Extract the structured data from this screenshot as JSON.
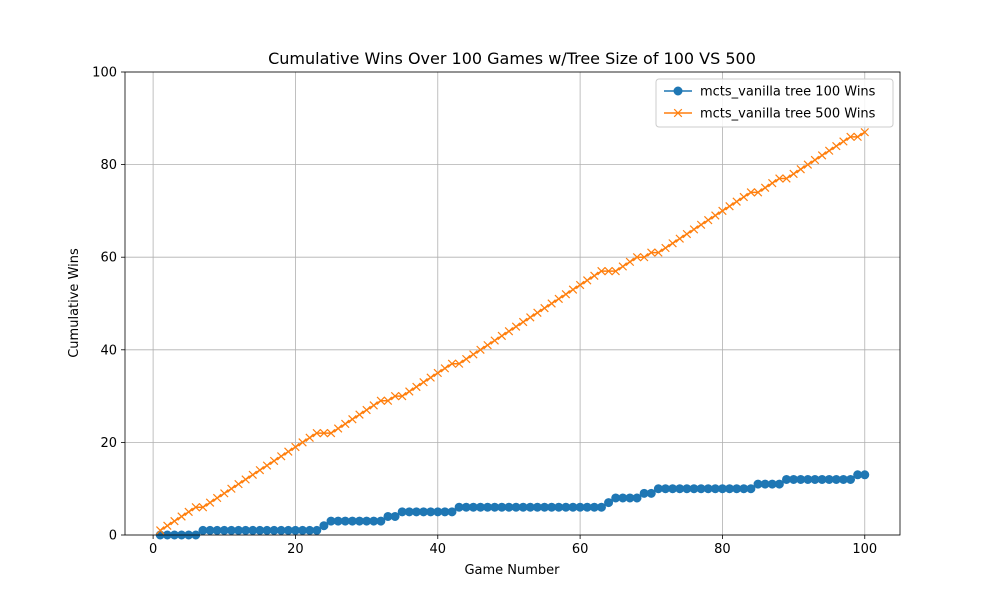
{
  "chart_data": {
    "type": "line",
    "title": "Cumulative Wins Over 100 Games w/Tree Size of 100 VS 500",
    "xlabel": "Game Number",
    "ylabel": "Cumulative Wins",
    "xlim": [
      -3.95,
      104.95
    ],
    "ylim": [
      0,
      100
    ],
    "xticks": [
      0,
      20,
      40,
      60,
      80,
      100
    ],
    "yticks": [
      0,
      20,
      40,
      60,
      80,
      100
    ],
    "grid": true,
    "legend_position": "top-right",
    "series": [
      {
        "name": "mcts_vanilla tree 100 Wins",
        "color": "#1f77b4",
        "marker": "circle",
        "values": [
          0,
          0,
          0,
          0,
          0,
          0,
          1,
          1,
          1,
          1,
          1,
          1,
          1,
          1,
          1,
          1,
          1,
          1,
          1,
          1,
          1,
          1,
          1,
          2,
          3,
          3,
          3,
          3,
          3,
          3,
          3,
          3,
          4,
          4,
          5,
          5,
          5,
          5,
          5,
          5,
          5,
          5,
          6,
          6,
          6,
          6,
          6,
          6,
          6,
          6,
          6,
          6,
          6,
          6,
          6,
          6,
          6,
          6,
          6,
          6,
          6,
          6,
          6,
          7,
          8,
          8,
          8,
          8,
          9,
          9,
          10,
          10,
          10,
          10,
          10,
          10,
          10,
          10,
          10,
          10,
          10,
          10,
          10,
          10,
          11,
          11,
          11,
          11,
          12,
          12,
          12,
          12,
          12,
          12,
          12,
          12,
          12,
          12,
          13,
          13
        ]
      },
      {
        "name": "mcts_vanilla tree 500 Wins",
        "color": "#ff7f0e",
        "marker": "x",
        "values": [
          1,
          2,
          3,
          4,
          5,
          6,
          6,
          7,
          8,
          9,
          10,
          11,
          12,
          13,
          14,
          15,
          16,
          17,
          18,
          19,
          20,
          21,
          22,
          22,
          22,
          23,
          24,
          25,
          26,
          27,
          28,
          29,
          29,
          30,
          30,
          31,
          32,
          33,
          34,
          35,
          36,
          37,
          37,
          38,
          39,
          40,
          41,
          42,
          43,
          44,
          45,
          46,
          47,
          48,
          49,
          50,
          51,
          52,
          53,
          54,
          55,
          56,
          57,
          57,
          57,
          58,
          59,
          60,
          60,
          61,
          61,
          62,
          63,
          64,
          65,
          66,
          67,
          68,
          69,
          70,
          71,
          72,
          73,
          74,
          74,
          75,
          76,
          77,
          77,
          78,
          79,
          80,
          81,
          82,
          83,
          84,
          85,
          86,
          86,
          87
        ]
      }
    ]
  }
}
